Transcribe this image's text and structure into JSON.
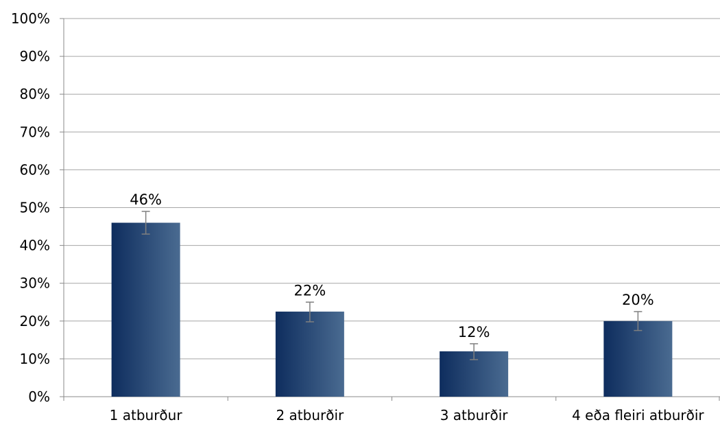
{
  "chart_data": {
    "type": "bar",
    "title": "",
    "xlabel": "",
    "ylabel": "",
    "categories": [
      "1 atburður",
      "2 atburðir",
      "3 atburðir",
      "4 eða fleiri atburðir"
    ],
    "values": [
      46,
      22.5,
      12,
      20
    ],
    "data_labels": [
      "46%",
      "22%",
      "12%",
      "20%"
    ],
    "error_bars": [
      {
        "low": 43,
        "high": 49
      },
      {
        "low": 19.8,
        "high": 25
      },
      {
        "low": 9.8,
        "high": 14
      },
      {
        "low": 17.5,
        "high": 22.5
      }
    ],
    "ylim": [
      0,
      100
    ],
    "yticks": [
      0,
      10,
      20,
      30,
      40,
      50,
      60,
      70,
      80,
      90,
      100
    ],
    "ytick_labels": [
      "0%",
      "10%",
      "20%",
      "30%",
      "40%",
      "50%",
      "60%",
      "70%",
      "80%",
      "90%",
      "100%"
    ],
    "grid": true,
    "legend": "none",
    "colors": {
      "bar_dark": "#0e2d5e",
      "bar_light": "#4a6b91",
      "grid": "#a6a6a6",
      "axis": "#888888",
      "error_bar": "#7f7f7f"
    }
  }
}
